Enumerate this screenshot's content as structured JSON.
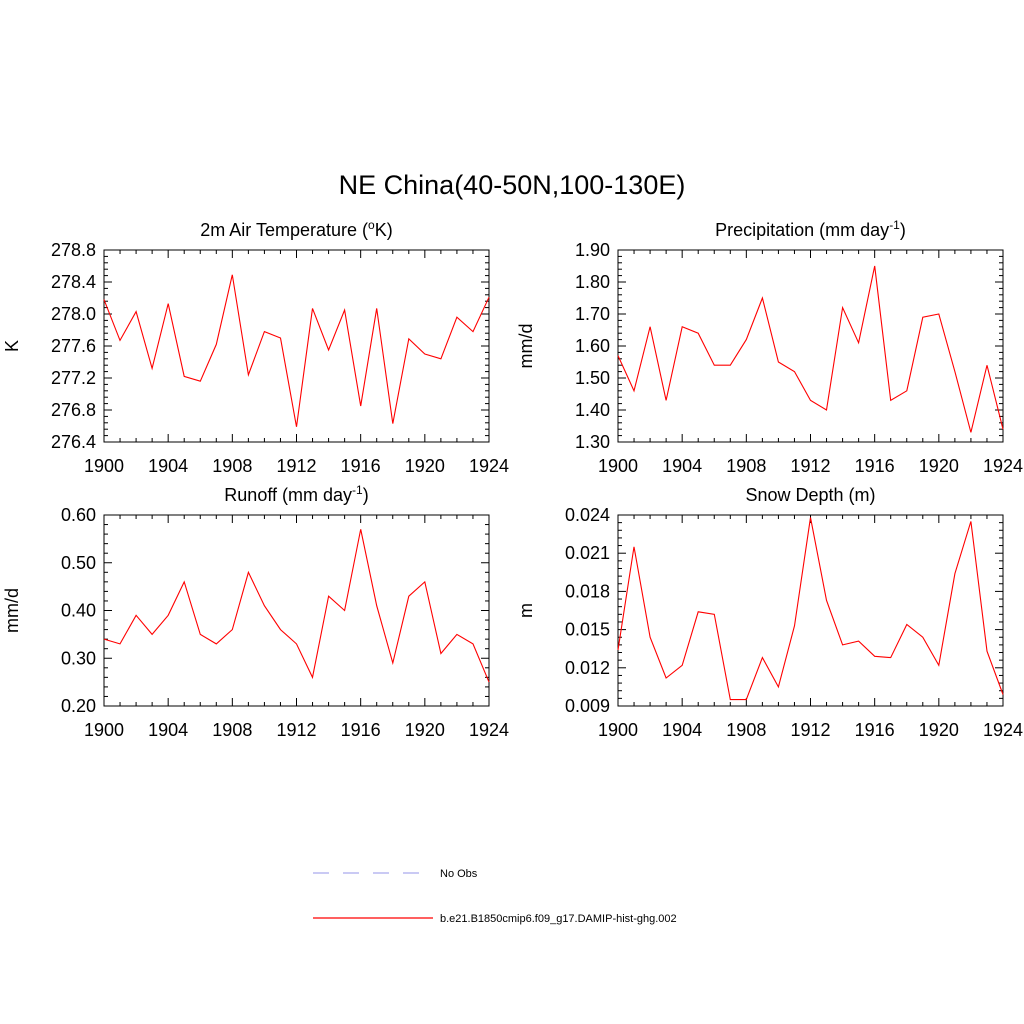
{
  "figure": {
    "title": "NE China(40-50N,100-130E)"
  },
  "legend": {
    "obs_label": "No Obs",
    "model_label": "b.e21.B1850cmip6.f09_g17.DAMIP-hist-ghg.002",
    "obs_color": "#aaaaee",
    "model_color": "#ff0000"
  },
  "chart_data": [
    {
      "type": "line",
      "title": "2m Air Temperature (",
      "title_sup": "o",
      "title_end": "K)",
      "ylabel": "K",
      "xlim": [
        1900,
        1924
      ],
      "ylim": [
        276.4,
        278.8
      ],
      "x_ticks": [
        1900,
        1904,
        1908,
        1912,
        1916,
        1920,
        1924
      ],
      "y_ticks": [
        276.4,
        276.8,
        277.2,
        277.6,
        278.0,
        278.4,
        278.8
      ],
      "y_tick_labels": [
        "276.4",
        "276.8",
        "277.2",
        "277.6",
        "278.0",
        "278.4",
        "278.8"
      ],
      "series": [
        {
          "color": "#ff0000",
          "x": [
            1900,
            1901,
            1902,
            1903,
            1904,
            1905,
            1906,
            1907,
            1908,
            1909,
            1910,
            1911,
            1912,
            1913,
            1914,
            1915,
            1916,
            1917,
            1918,
            1919,
            1920,
            1921,
            1922,
            1923,
            1924
          ],
          "y": [
            278.18,
            277.67,
            278.03,
            277.32,
            278.13,
            277.22,
            277.16,
            277.62,
            278.49,
            277.24,
            277.78,
            277.7,
            276.59,
            278.07,
            277.55,
            278.05,
            276.85,
            278.07,
            276.63,
            277.69,
            277.5,
            277.44,
            277.96,
            277.78,
            278.21
          ]
        }
      ]
    },
    {
      "type": "line",
      "title": "Precipitation (mm day",
      "title_sup": "-1",
      "title_end": ")",
      "ylabel": "mm/d",
      "xlim": [
        1900,
        1924
      ],
      "ylim": [
        1.3,
        1.9
      ],
      "x_ticks": [
        1900,
        1904,
        1908,
        1912,
        1916,
        1920,
        1924
      ],
      "y_ticks": [
        1.3,
        1.4,
        1.5,
        1.6,
        1.7,
        1.8,
        1.9
      ],
      "y_tick_labels": [
        "1.30",
        "1.40",
        "1.50",
        "1.60",
        "1.70",
        "1.80",
        "1.90"
      ],
      "series": [
        {
          "color": "#ff0000",
          "x": [
            1900,
            1901,
            1902,
            1903,
            1904,
            1905,
            1906,
            1907,
            1908,
            1909,
            1910,
            1911,
            1912,
            1913,
            1914,
            1915,
            1916,
            1917,
            1918,
            1919,
            1920,
            1921,
            1922,
            1923,
            1924
          ],
          "y": [
            1.57,
            1.46,
            1.66,
            1.43,
            1.66,
            1.64,
            1.54,
            1.54,
            1.62,
            1.75,
            1.55,
            1.52,
            1.43,
            1.4,
            1.72,
            1.61,
            1.85,
            1.43,
            1.46,
            1.69,
            1.7,
            1.52,
            1.33,
            1.54,
            1.34
          ]
        }
      ]
    },
    {
      "type": "line",
      "title": "Runoff (mm day",
      "title_sup": "-1",
      "title_end": ")",
      "ylabel": "mm/d",
      "xlim": [
        1900,
        1924
      ],
      "ylim": [
        0.2,
        0.6
      ],
      "x_ticks": [
        1900,
        1904,
        1908,
        1912,
        1916,
        1920,
        1924
      ],
      "y_ticks": [
        0.2,
        0.3,
        0.4,
        0.5,
        0.6
      ],
      "y_tick_labels": [
        "0.20",
        "0.30",
        "0.40",
        "0.50",
        "0.60"
      ],
      "series": [
        {
          "color": "#ff0000",
          "x": [
            1900,
            1901,
            1902,
            1903,
            1904,
            1905,
            1906,
            1907,
            1908,
            1909,
            1910,
            1911,
            1912,
            1913,
            1914,
            1915,
            1916,
            1917,
            1918,
            1919,
            1920,
            1921,
            1922,
            1923,
            1924
          ],
          "y": [
            0.34,
            0.33,
            0.39,
            0.35,
            0.39,
            0.46,
            0.35,
            0.33,
            0.36,
            0.48,
            0.41,
            0.36,
            0.33,
            0.26,
            0.43,
            0.4,
            0.57,
            0.41,
            0.29,
            0.43,
            0.46,
            0.31,
            0.35,
            0.33,
            0.25
          ]
        }
      ]
    },
    {
      "type": "line",
      "title": "Snow Depth (m)",
      "title_sup": "",
      "title_end": "",
      "ylabel": "m",
      "xlim": [
        1900,
        1924
      ],
      "ylim": [
        0.009,
        0.024
      ],
      "x_ticks": [
        1900,
        1904,
        1908,
        1912,
        1916,
        1920,
        1924
      ],
      "y_ticks": [
        0.009,
        0.012,
        0.015,
        0.018,
        0.021,
        0.024
      ],
      "y_tick_labels": [
        "0.009",
        "0.012",
        "0.015",
        "0.018",
        "0.021",
        "0.024"
      ],
      "series": [
        {
          "color": "#ff0000",
          "x": [
            1900,
            1901,
            1902,
            1903,
            1904,
            1905,
            1906,
            1907,
            1908,
            1909,
            1910,
            1911,
            1912,
            1913,
            1914,
            1915,
            1916,
            1917,
            1918,
            1919,
            1920,
            1921,
            1922,
            1923,
            1924
          ],
          "y": [
            0.0134,
            0.0215,
            0.0144,
            0.0112,
            0.0122,
            0.0164,
            0.0162,
            0.0095,
            0.0095,
            0.0128,
            0.0105,
            0.0153,
            0.0238,
            0.0173,
            0.0138,
            0.0141,
            0.0129,
            0.0128,
            0.0154,
            0.0144,
            0.0122,
            0.0194,
            0.0235,
            0.0133,
            0.0099
          ]
        }
      ]
    }
  ]
}
